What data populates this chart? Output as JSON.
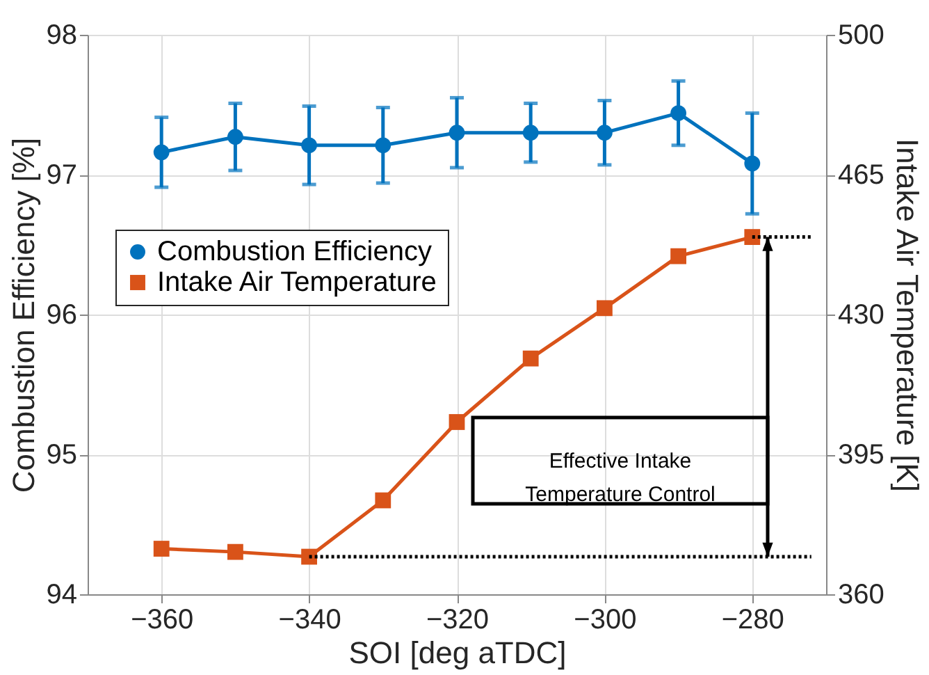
{
  "chart_data": {
    "type": "line",
    "xlabel": "SOI [deg aTDC]",
    "ylabel": "Combustion Efficiency [%]",
    "y2label": "Intake Air Temperature [K]",
    "x": [
      -360,
      -350,
      -340,
      -330,
      -320,
      -310,
      -300,
      -290,
      -280
    ],
    "xlim": [
      -370,
      -270
    ],
    "xticks": [
      -360,
      -340,
      -320,
      -300,
      -280
    ],
    "ylim": [
      94,
      98
    ],
    "yticks": [
      94,
      95,
      96,
      97,
      98
    ],
    "y2lim": [
      360,
      500
    ],
    "y2ticks": [
      360,
      395,
      430,
      465,
      500
    ],
    "grid": true,
    "legend": "top left",
    "series": [
      {
        "name": "Combustion Efficiency",
        "color": "#0072bd",
        "marker": "circle",
        "values": [
          97.16,
          97.27,
          97.21,
          97.21,
          97.3,
          97.3,
          97.3,
          97.44,
          97.08
        ],
        "errors": [
          0.25,
          0.24,
          0.28,
          0.27,
          0.25,
          0.21,
          0.23,
          0.23,
          0.36
        ]
      },
      {
        "name": "Intake Air Temperature",
        "color": "#d95319",
        "marker": "square",
        "axis": "y2",
        "values": [
          371.4,
          370.6,
          369.4,
          383.5,
          403.1,
          419,
          431.6,
          444.6,
          449.4
        ],
        "errors": [
          1,
          1,
          1,
          1,
          1,
          1,
          1,
          1,
          1
        ]
      },
      {
        "type": "line",
        "color": "#000000",
        "marker": "none",
        "line_style": "dotted",
        "axis": "y2",
        "x": [
          -340,
          -272
        ],
        "values": [
          369.4,
          369.4
        ]
      },
      {
        "type": "line",
        "color": "#000000",
        "marker": "none",
        "line_style": "dotted",
        "axis": "y2",
        "x": [
          -280,
          -272
        ],
        "values": [
          449.4,
          449.4
        ]
      }
    ],
    "annotations": [
      "Effective Intake Temperature Control"
    ]
  }
}
